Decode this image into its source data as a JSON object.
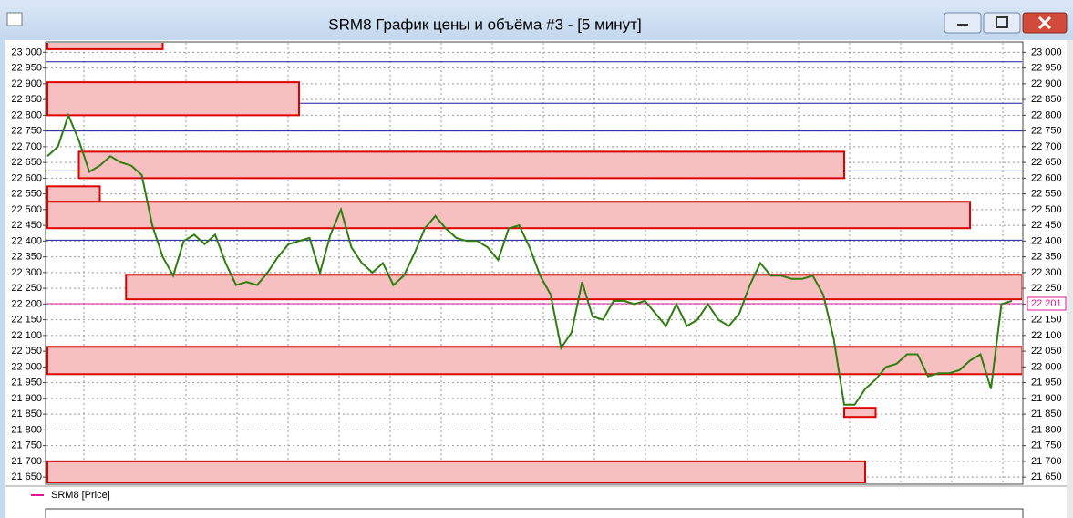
{
  "window": {
    "title": "SRM8 График цены и объёма #3 - [5 минут]"
  },
  "chart_data": {
    "type": "line",
    "legend": "SRM8 [Price]",
    "series": [
      {
        "name": "SRM8 [Price]",
        "color": "#2f7d0f",
        "values": [
          22670,
          22700,
          22800,
          22720,
          22620,
          22640,
          22670,
          22650,
          22640,
          22610,
          22450,
          22350,
          22290,
          22400,
          22420,
          22390,
          22420,
          22330,
          22260,
          22270,
          22260,
          22300,
          22350,
          22390,
          22400,
          22410,
          22300,
          22420,
          22500,
          22380,
          22330,
          22300,
          22330,
          22260,
          22290,
          22360,
          22440,
          22480,
          22440,
          22410,
          22400,
          22400,
          22380,
          22340,
          22440,
          22450,
          22380,
          22290,
          22230,
          22060,
          22110,
          22270,
          22160,
          22150,
          22210,
          22210,
          22200,
          22210,
          22170,
          22130,
          22200,
          22130,
          22150,
          22200,
          22150,
          22130,
          22170,
          22260,
          22330,
          22290,
          22290,
          22280,
          22280,
          22290,
          22230,
          22090,
          21880,
          21880,
          21930,
          21960,
          22000,
          22010,
          22040,
          22040,
          21970,
          21980,
          21980,
          21990,
          22020,
          22040,
          21930,
          22200,
          22210
        ]
      }
    ],
    "ylim": [
      21630,
      23030
    ],
    "yticks": [
      {
        "value": 21650,
        "label": "21 650"
      },
      {
        "value": 21700,
        "label": "21 700"
      },
      {
        "value": 21750,
        "label": "21 750"
      },
      {
        "value": 21800,
        "label": "21 800"
      },
      {
        "value": 21850,
        "label": "21 850"
      },
      {
        "value": 21900,
        "label": "21 900"
      },
      {
        "value": 21950,
        "label": "21 950"
      },
      {
        "value": 22000,
        "label": "22 000"
      },
      {
        "value": 22050,
        "label": "22 050"
      },
      {
        "value": 22100,
        "label": "22 100"
      },
      {
        "value": 22150,
        "label": "22 150"
      },
      {
        "value": 22200,
        "label": "22 200"
      },
      {
        "value": 22250,
        "label": "22 250"
      },
      {
        "value": 22300,
        "label": "22 300"
      },
      {
        "value": 22350,
        "label": "22 350"
      },
      {
        "value": 22400,
        "label": "22 400"
      },
      {
        "value": 22450,
        "label": "22 450"
      },
      {
        "value": 22500,
        "label": "22 500"
      },
      {
        "value": 22550,
        "label": "22 550"
      },
      {
        "value": 22600,
        "label": "22 600"
      },
      {
        "value": 22650,
        "label": "22 650"
      },
      {
        "value": 22700,
        "label": "22 700"
      },
      {
        "value": 22750,
        "label": "22 750"
      },
      {
        "value": 22800,
        "label": "22 800"
      },
      {
        "value": 22850,
        "label": "22 850"
      },
      {
        "value": 22900,
        "label": "22 900"
      },
      {
        "value": 22950,
        "label": "22 950"
      },
      {
        "value": 23000,
        "label": "23 000"
      }
    ],
    "grid": true,
    "zones": [
      {
        "low": 23010,
        "high": 23040,
        "start": 0,
        "end": 11
      },
      {
        "low": 22800,
        "high": 22905,
        "start": 0,
        "end": 24
      },
      {
        "low": 22600,
        "high": 22684,
        "start": 3,
        "end": 76
      },
      {
        "low": 22525,
        "high": 22574,
        "start": 0,
        "end": 5
      },
      {
        "low": 22441,
        "high": 22525,
        "start": 0,
        "end": 88
      },
      {
        "low": 22215,
        "high": 22293,
        "start": 7.5,
        "end": 93
      },
      {
        "low": 21977,
        "high": 22064,
        "start": 0,
        "end": 93
      },
      {
        "low": 21841,
        "high": 21870,
        "start": 76,
        "end": 79
      },
      {
        "low": 21630,
        "high": 21700,
        "start": 0,
        "end": 78
      }
    ],
    "zone_color": "#f7c0c0",
    "zone_border": "#e00000",
    "levels": [
      22970,
      22838,
      22750,
      22623,
      22403
    ],
    "level_color": "#1a1aa8",
    "last_price": {
      "value": 22201,
      "label": "22 201",
      "color": "#e0169a"
    }
  }
}
